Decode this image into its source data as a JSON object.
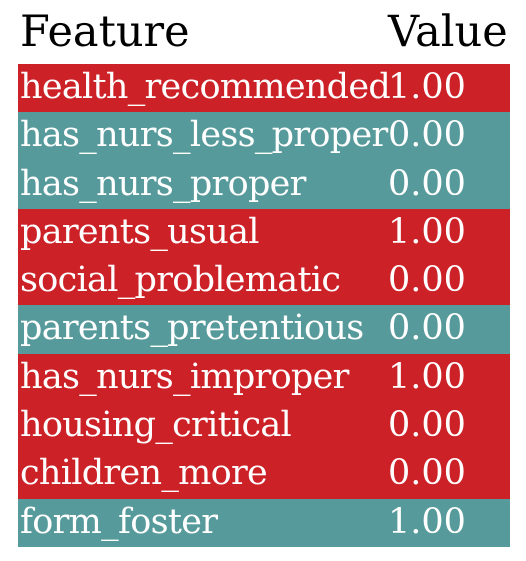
{
  "chart_data": {
    "type": "table",
    "columns": [
      "Feature",
      "Value"
    ],
    "colors": {
      "red": "#cc2127",
      "teal": "#579a9b"
    },
    "rows": [
      {
        "feature": "health_recommended",
        "value": "1.00",
        "color": "#cc2127"
      },
      {
        "feature": "has_nurs_less_proper",
        "value": "0.00",
        "color": "#579a9b"
      },
      {
        "feature": "has_nurs_proper",
        "value": "0.00",
        "color": "#579a9b"
      },
      {
        "feature": "parents_usual",
        "value": "1.00",
        "color": "#cc2127"
      },
      {
        "feature": "social_problematic",
        "value": "0.00",
        "color": "#cc2127"
      },
      {
        "feature": "parents_pretentious",
        "value": "0.00",
        "color": "#579a9b"
      },
      {
        "feature": "has_nurs_improper",
        "value": "1.00",
        "color": "#cc2127"
      },
      {
        "feature": "housing_critical",
        "value": "0.00",
        "color": "#cc2127"
      },
      {
        "feature": "children_more",
        "value": "0.00",
        "color": "#cc2127"
      },
      {
        "feature": "form_foster",
        "value": "1.00",
        "color": "#579a9b"
      }
    ]
  }
}
